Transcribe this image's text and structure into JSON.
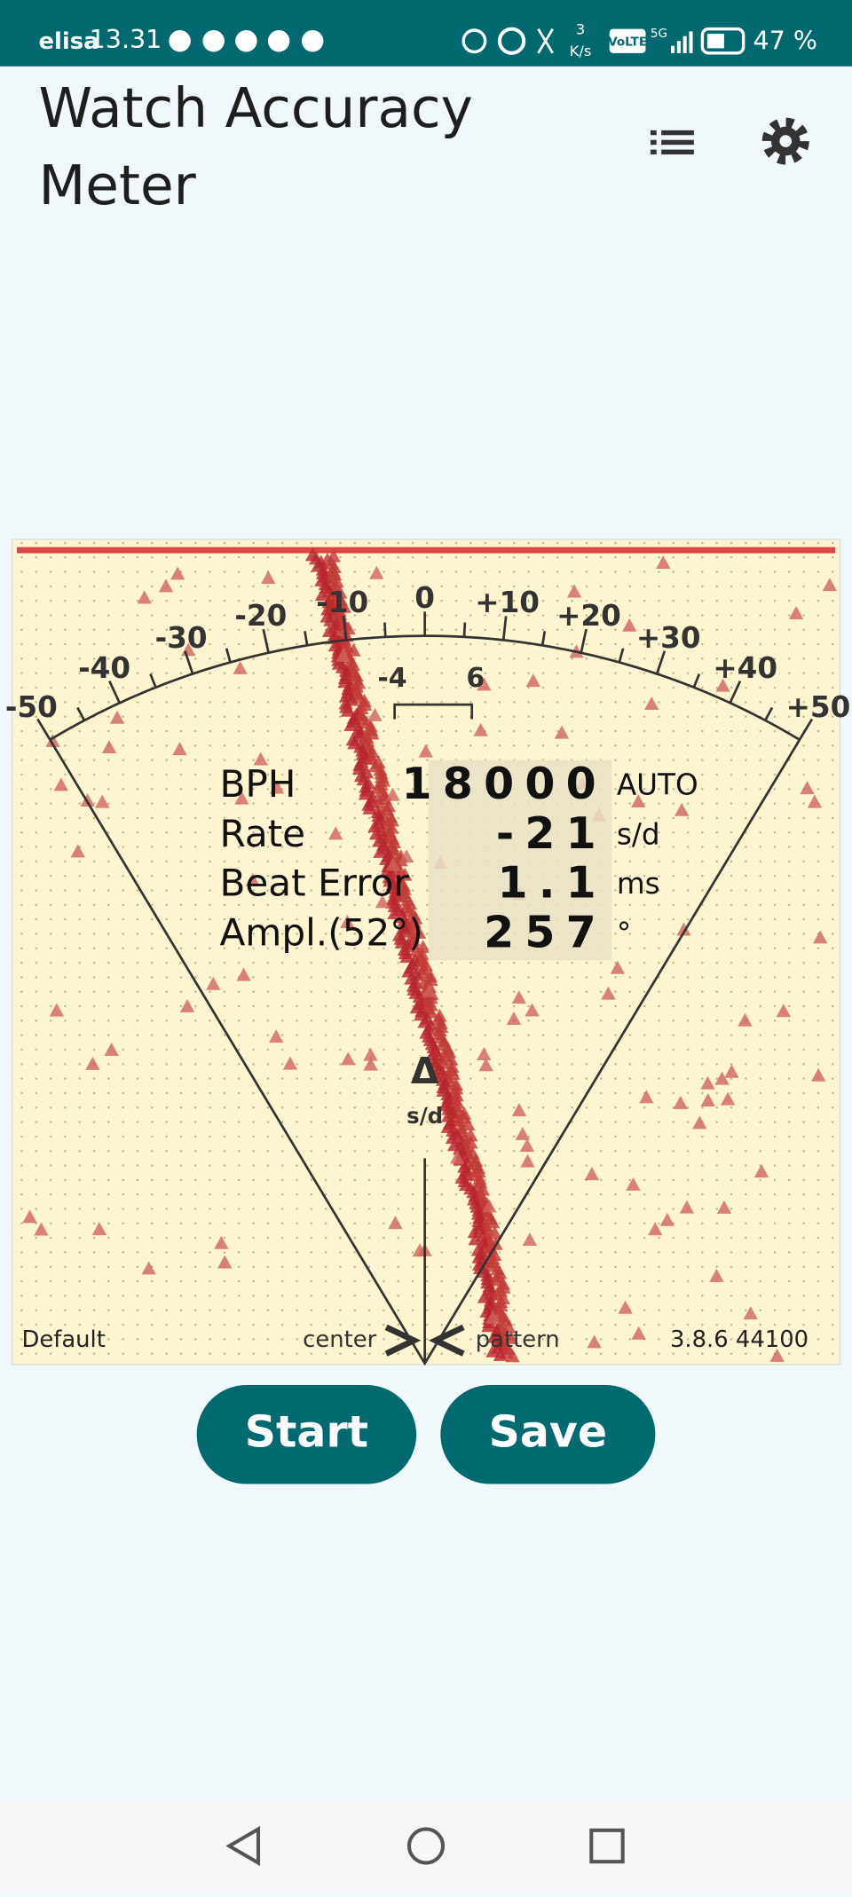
{
  "status_bar": {
    "carrier": "elisa",
    "time": "13.31",
    "speed": "3",
    "speed_unit": "K/s",
    "volte": "VoLTE",
    "network": "5G",
    "battery": "47 %"
  },
  "header": {
    "title": "Watch Accuracy Meter"
  },
  "dial": {
    "scale_labels": [
      "-50",
      "-40",
      "-30",
      "-20",
      "-10",
      "0",
      "+10",
      "+20",
      "+30",
      "+40",
      "+50"
    ],
    "window_labels": [
      "-4",
      "6"
    ],
    "delta": "Δ",
    "delta_unit": "s/d"
  },
  "readings": [
    {
      "label": "BPH",
      "value": "18000",
      "unit": "AUTO"
    },
    {
      "label": "Rate",
      "value": "-21",
      "unit": "s/d"
    },
    {
      "label": "Beat Error",
      "value": "1.1",
      "unit": "ms"
    },
    {
      "label": "Ampl.(52°)",
      "value": "257",
      "unit": "°"
    }
  ],
  "footer": {
    "left": "Default",
    "center": "center",
    "pattern": "pattern",
    "version": "3.8.6 44100"
  },
  "buttons": {
    "start": "Start",
    "save": "Save"
  }
}
